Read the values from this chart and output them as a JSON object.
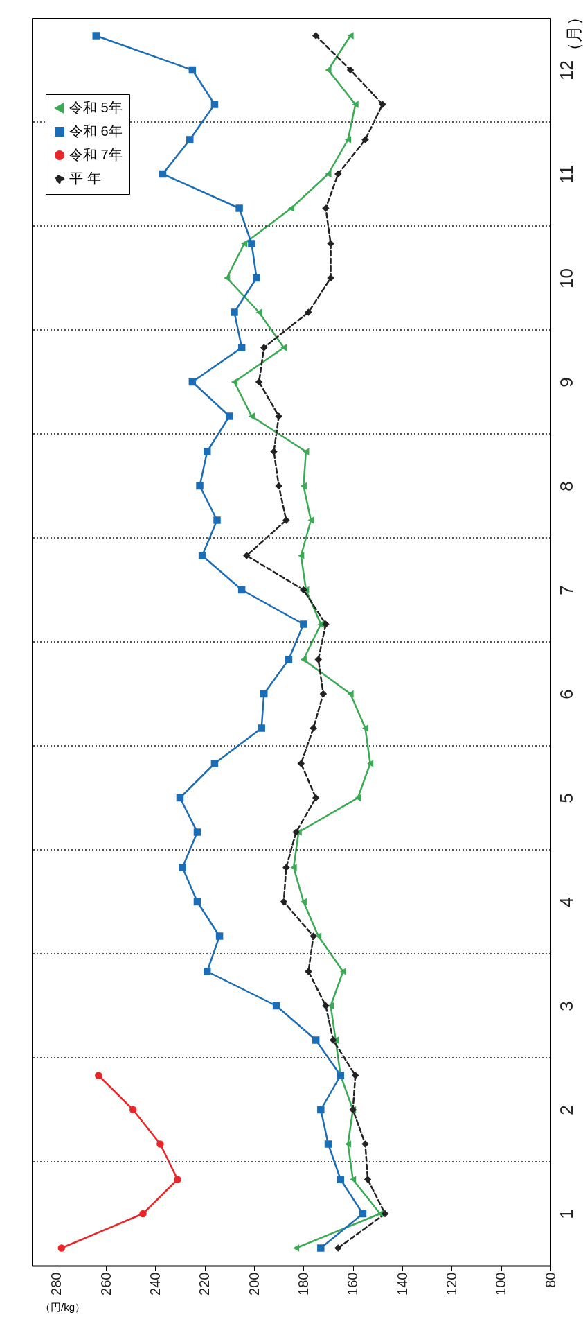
{
  "chart_data": {
    "type": "line",
    "xlabel": "（円/kg）",
    "ylabel": "（月）",
    "xlim": [
      290,
      80
    ],
    "xticks": [
      280,
      260,
      240,
      220,
      200,
      180,
      160,
      140,
      120,
      100,
      80
    ],
    "ylim": [
      0.5,
      12.5
    ],
    "yticks": [
      1,
      2,
      3,
      4,
      5,
      6,
      7,
      8,
      9,
      10,
      11,
      12
    ],
    "grid": false,
    "legend": "top left",
    "series": [
      {
        "name": "令和 5年",
        "color": "#3aaa55",
        "marker": "triangle",
        "line_style": "solid",
        "x": [
          183,
          149,
          160,
          162,
          160,
          165,
          167,
          169,
          164,
          174,
          180,
          184,
          182,
          158,
          153,
          155,
          161,
          180,
          173,
          179,
          181,
          177,
          180,
          179,
          201,
          208,
          188,
          198,
          211,
          204,
          185,
          170,
          162,
          159,
          170,
          161
        ],
        "values": [
          0.67,
          1,
          1.33,
          1.67,
          2,
          2.33,
          2.67,
          3,
          3.33,
          3.67,
          4,
          4.33,
          4.67,
          5,
          5.33,
          5.67,
          6,
          6.33,
          6.67,
          7,
          7.33,
          7.67,
          8,
          8.33,
          8.67,
          9,
          9.33,
          9.67,
          10,
          10.33,
          10.67,
          11,
          11.33,
          11.67,
          12,
          12.33
        ]
      },
      {
        "name": "令和 6年",
        "color": "#1b6db5",
        "marker": "square",
        "line_style": "solid",
        "x": [
          173,
          156,
          165,
          170,
          173,
          165,
          175,
          191,
          219,
          214,
          223,
          229,
          223,
          230,
          216,
          197,
          196,
          186,
          180,
          205,
          221,
          215,
          222,
          219,
          210,
          225,
          205,
          208,
          199,
          201,
          206,
          237,
          226,
          216,
          225,
          264
        ],
        "values": [
          0.67,
          1,
          1.33,
          1.67,
          2,
          2.33,
          2.67,
          3,
          3.33,
          3.67,
          4,
          4.33,
          4.67,
          5,
          5.33,
          5.67,
          6,
          6.33,
          6.67,
          7,
          7.33,
          7.67,
          8,
          8.33,
          8.67,
          9,
          9.33,
          9.67,
          10,
          10.33,
          10.67,
          11,
          11.33,
          11.67,
          12,
          12.33
        ]
      },
      {
        "name": "令和 7年",
        "color": "#e8262a",
        "marker": "circle",
        "line_style": "solid",
        "x": [
          278,
          245,
          231,
          238,
          249,
          263
        ],
        "values": [
          0.67,
          1,
          1.33,
          1.67,
          2,
          2.33
        ]
      },
      {
        "name": "平 年",
        "color": "#222222",
        "marker": "diamond",
        "line_style": "dashed",
        "x": [
          166,
          147,
          154,
          155,
          160,
          159,
          168,
          171,
          178,
          176,
          188,
          187,
          183,
          175,
          181,
          176,
          172,
          174,
          171,
          180,
          203,
          187,
          190,
          192,
          190,
          198,
          196,
          178,
          169,
          169,
          171,
          166,
          155,
          148,
          161,
          175
        ],
        "values": [
          0.67,
          1,
          1.33,
          1.67,
          2,
          2.33,
          2.67,
          3,
          3.33,
          3.67,
          4,
          4.33,
          4.67,
          5,
          5.33,
          5.67,
          6,
          6.33,
          6.67,
          7,
          7.33,
          7.67,
          8,
          8.33,
          8.67,
          9,
          9.33,
          9.67,
          10,
          10.33,
          10.67,
          11,
          11.33,
          11.67,
          12,
          12.33
        ]
      }
    ],
    "ref_lines": [
      {
        "axis": "y",
        "value": 1.5,
        "line_style": "dotted",
        "color": "#555555"
      },
      {
        "axis": "y",
        "value": 2.5,
        "line_style": "dotted",
        "color": "#555555"
      },
      {
        "axis": "y",
        "value": 3.5,
        "line_style": "dotted",
        "color": "#555555"
      },
      {
        "axis": "y",
        "value": 4.5,
        "line_style": "dotted",
        "color": "#555555"
      },
      {
        "axis": "y",
        "value": 5.5,
        "line_style": "dotted",
        "color": "#555555"
      },
      {
        "axis": "y",
        "value": 6.5,
        "line_style": "dotted",
        "color": "#555555"
      },
      {
        "axis": "y",
        "value": 7.5,
        "line_style": "dotted",
        "color": "#555555"
      },
      {
        "axis": "y",
        "value": 8.5,
        "line_style": "dotted",
        "color": "#555555"
      },
      {
        "axis": "y",
        "value": 9.5,
        "line_style": "dotted",
        "color": "#555555"
      },
      {
        "axis": "y",
        "value": 10.5,
        "line_style": "dotted",
        "color": "#555555"
      },
      {
        "axis": "y",
        "value": 11.5,
        "line_style": "dotted",
        "color": "#555555"
      }
    ]
  }
}
